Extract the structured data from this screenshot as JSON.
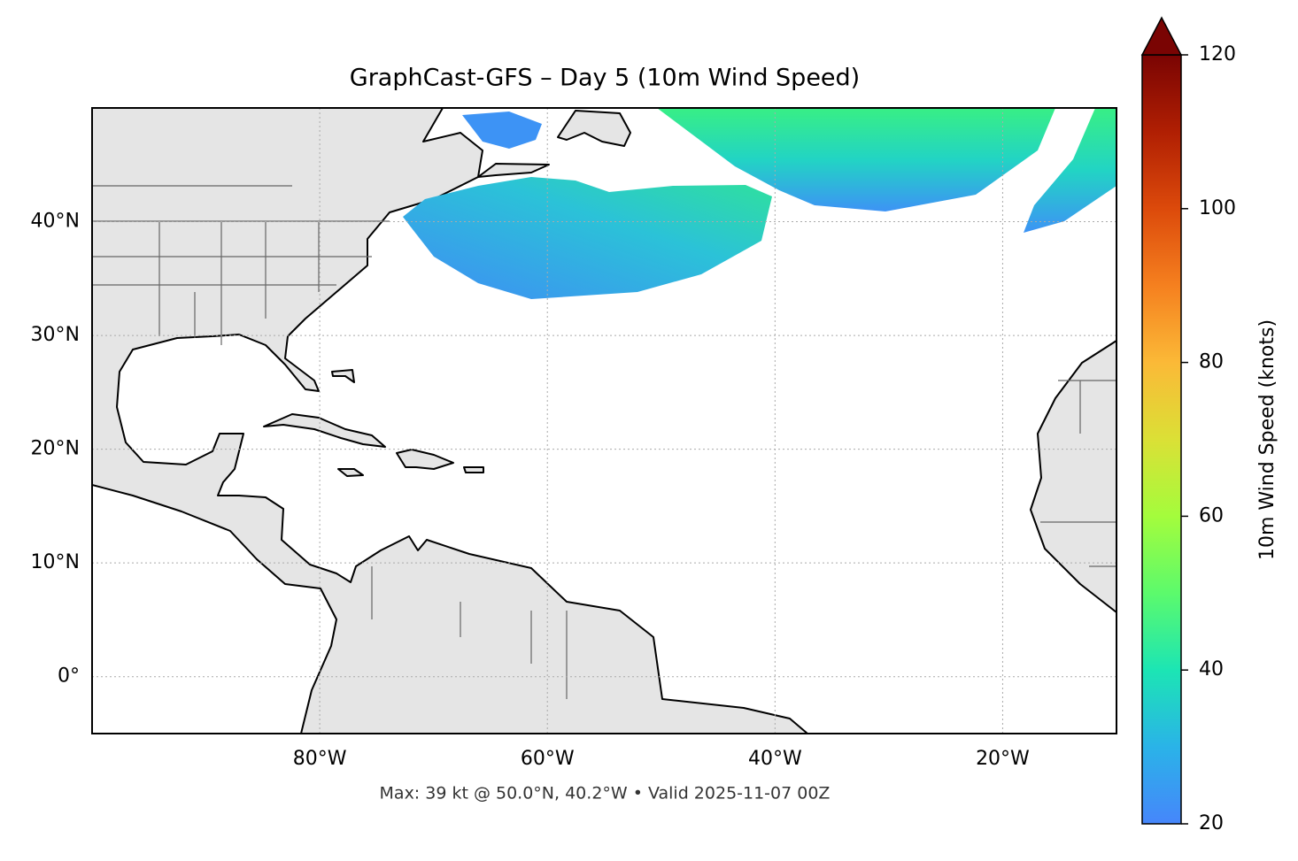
{
  "chart_data": {
    "type": "map",
    "title": "GraphCast-GFS – Day 5 (10m Wind Speed)",
    "note": "Max: 39 kt @ 50.0°N, 40.2°W • Valid 2025-11-07 00Z",
    "xlim": [
      -100,
      -10
    ],
    "ylim": [
      -5,
      50
    ],
    "xticks": [
      {
        "value": -80,
        "label": "80°W"
      },
      {
        "value": -60,
        "label": "60°W"
      },
      {
        "value": -40,
        "label": "40°W"
      },
      {
        "value": -20,
        "label": "20°W"
      }
    ],
    "yticks": [
      {
        "value": 0,
        "label": "0°"
      },
      {
        "value": 10,
        "label": "10°N"
      },
      {
        "value": 20,
        "label": "20°N"
      },
      {
        "value": 30,
        "label": "30°N"
      },
      {
        "value": 40,
        "label": "40°N"
      }
    ],
    "grid": true,
    "colorbar": {
      "label": "10m Wind Speed (knots)",
      "lim": [
        20,
        120
      ],
      "ticks": [
        20,
        40,
        60,
        80,
        100,
        120
      ]
    }
  }
}
